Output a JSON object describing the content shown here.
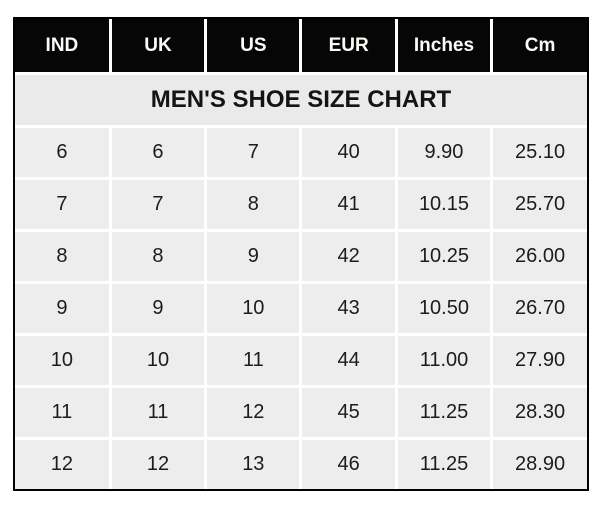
{
  "colors": {
    "page_background": "#ffffff",
    "outer_border": "#000000",
    "title_background": "#eaeaea",
    "header_background": "#060606",
    "header_text": "#fbfaf7",
    "cell_background": "#ededed",
    "cell_text": "#1c1c1c",
    "grid_separator": "#ffffff"
  },
  "chart_data": {
    "type": "table",
    "title": "MEN'S SHOE SIZE CHART",
    "columns": [
      "IND",
      "UK",
      "US",
      "EUR",
      "Inches",
      "Cm"
    ],
    "rows": [
      [
        "6",
        "6",
        "7",
        "40",
        "9.90",
        "25.10"
      ],
      [
        "7",
        "7",
        "8",
        "41",
        "10.15",
        "25.70"
      ],
      [
        "8",
        "8",
        "9",
        "42",
        "10.25",
        "26.00"
      ],
      [
        "9",
        "9",
        "10",
        "43",
        "10.50",
        "26.70"
      ],
      [
        "10",
        "10",
        "11",
        "44",
        "11.00",
        "27.90"
      ],
      [
        "11",
        "11",
        "12",
        "45",
        "11.25",
        "28.30"
      ],
      [
        "12",
        "12",
        "13",
        "46",
        "11.25",
        "28.90"
      ]
    ]
  }
}
